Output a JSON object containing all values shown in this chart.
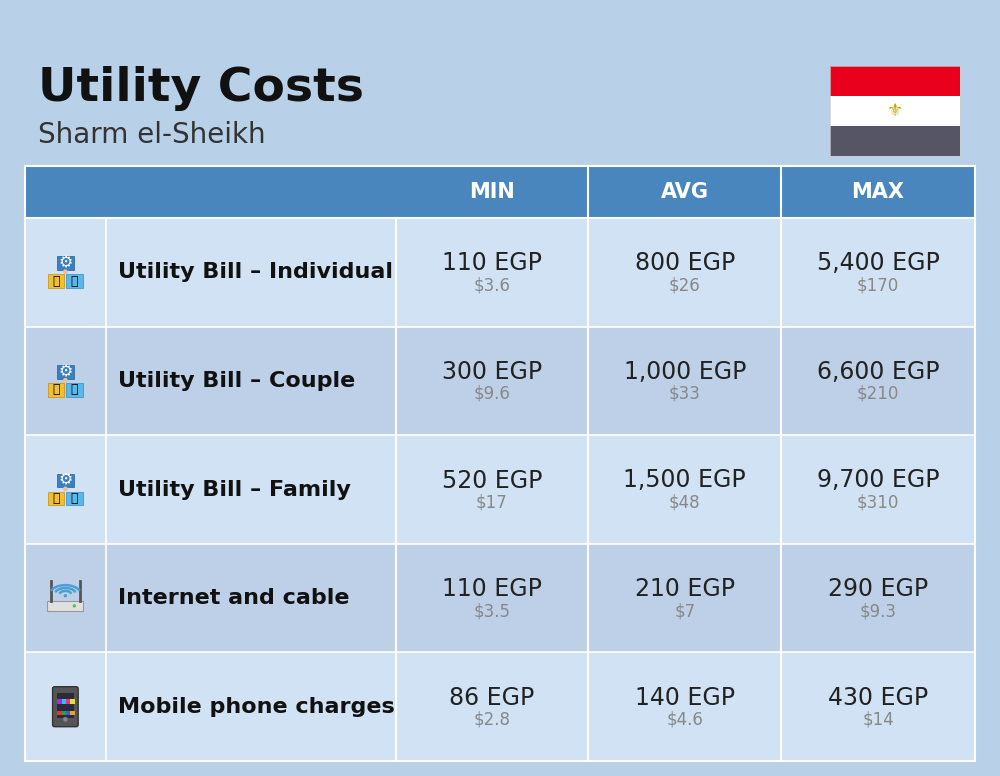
{
  "title": "Utility Costs",
  "subtitle": "Sharm el-Sheikh",
  "background_color": "#b8d0e8",
  "header_color": "#4a86be",
  "row_color_even": "#d0e2f3",
  "row_color_odd": "#bdd0e8",
  "header_text_color": "#ffffff",
  "label_text_color": "#111111",
  "egp_text_color": "#222222",
  "usd_text_color": "#888888",
  "header_labels": [
    "MIN",
    "AVG",
    "MAX"
  ],
  "rows": [
    {
      "label": "Utility Bill – Individual",
      "min_egp": "110 EGP",
      "min_usd": "$3.6",
      "avg_egp": "800 EGP",
      "avg_usd": "$26",
      "max_egp": "5,400 EGP",
      "max_usd": "$170"
    },
    {
      "label": "Utility Bill – Couple",
      "min_egp": "300 EGP",
      "min_usd": "$9.6",
      "avg_egp": "1,000 EGP",
      "avg_usd": "$33",
      "max_egp": "6,600 EGP",
      "max_usd": "$210"
    },
    {
      "label": "Utility Bill – Family",
      "min_egp": "520 EGP",
      "min_usd": "$17",
      "avg_egp": "1,500 EGP",
      "avg_usd": "$48",
      "max_egp": "9,700 EGP",
      "max_usd": "$310"
    },
    {
      "label": "Internet and cable",
      "min_egp": "110 EGP",
      "min_usd": "$3.5",
      "avg_egp": "210 EGP",
      "avg_usd": "$7",
      "max_egp": "290 EGP",
      "max_usd": "$9.3"
    },
    {
      "label": "Mobile phone charges",
      "min_egp": "86 EGP",
      "min_usd": "$2.8",
      "avg_egp": "140 EGP",
      "avg_usd": "$4.6",
      "max_egp": "430 EGP",
      "max_usd": "$14"
    }
  ],
  "title_fontsize": 34,
  "subtitle_fontsize": 20,
  "header_fontsize": 15,
  "cell_egp_fontsize": 17,
  "cell_usd_fontsize": 12,
  "label_fontsize": 16,
  "flag_red": "#e8001c",
  "flag_white": "#ffffff",
  "flag_dark": "#555566",
  "flag_gold": "#c8a800"
}
